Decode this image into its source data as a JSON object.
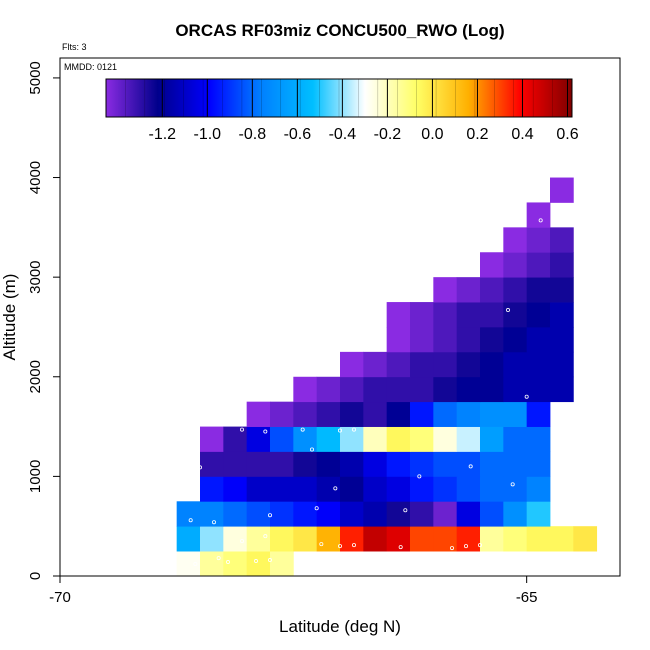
{
  "chart_data": {
    "type": "heatmap",
    "title": "ORCAS RF03miz CONCU500_RWO (Log)",
    "flights_note": "Flts: 3",
    "date_note": "MMDD: 0121",
    "xlabel": "Latitude (deg N)",
    "ylabel": "Altitude (m)",
    "xlim": [
      -70,
      -64
    ],
    "ylim": [
      0,
      5200
    ],
    "x_ticks": [
      -70,
      -65
    ],
    "x_tick_labels": [
      "-70",
      "-65"
    ],
    "y_ticks": [
      0,
      1000,
      2000,
      3000,
      4000,
      5000
    ],
    "y_tick_labels": [
      "0",
      "1000",
      "2000",
      "3000",
      "4000",
      "5000"
    ],
    "bin_width_deg": 0.25,
    "bin_height_m": 250,
    "colorbar": {
      "vmin": -1.45,
      "vmax": 0.62,
      "ticks": [
        -1.2,
        -1.0,
        -0.8,
        -0.6,
        -0.4,
        -0.2,
        0.0,
        0.2,
        0.4,
        0.6
      ],
      "tick_labels": [
        "-1.2",
        "-1.0",
        "-0.8",
        "-0.6",
        "-0.4",
        "-0.2",
        "0.0",
        "0.2",
        "0.4",
        "0.6"
      ],
      "colors": [
        "#8a2be2",
        "#00008b",
        "#0000ff",
        "#0080ff",
        "#00bfff",
        "#ffffff",
        "#ffff66",
        "#ffb000",
        "#ff0000",
        "#7f0000"
      ]
    },
    "rows": [
      {
        "alt": 0,
        "lat0": -68.75,
        "values": [
          -0.28,
          -0.15,
          -0.1,
          -0.05,
          -0.15
        ]
      },
      {
        "alt": 250,
        "lat0": -68.75,
        "values": [
          -0.6,
          -0.4,
          -0.25,
          -0.15,
          -0.05,
          0.0,
          0.15,
          0.35,
          0.5,
          0.45,
          0.3,
          0.3,
          0.35,
          -0.15,
          -0.1,
          -0.05,
          -0.05,
          0.0
        ]
      },
      {
        "alt": 500,
        "lat0": -68.75,
        "values": [
          -0.75,
          -0.75,
          -0.8,
          -0.85,
          -0.9,
          -0.95,
          -1.0,
          -1.1,
          -1.15,
          -1.25,
          -1.3,
          -1.4,
          -1.05,
          -0.85,
          -0.7,
          -0.5
        ]
      },
      {
        "alt": 750,
        "lat0": -68.5,
        "values": [
          -0.95,
          -1.0,
          -1.1,
          -1.1,
          -1.1,
          -1.15,
          -1.2,
          -1.1,
          -1.05,
          -0.95,
          -0.9,
          -0.85,
          -0.8,
          -0.8,
          -0.75
        ]
      },
      {
        "alt": 1000,
        "lat0": -68.5,
        "values": [
          -1.3,
          -1.3,
          -1.3,
          -1.3,
          -1.25,
          -1.2,
          -1.15,
          -1.05,
          -0.95,
          -0.9,
          -0.85,
          -0.85,
          -0.8,
          -0.8,
          -0.8
        ]
      },
      {
        "alt": 1250,
        "lat0": -68.5,
        "values": [
          -1.45,
          -1.3,
          -1.05,
          -0.85,
          -0.7,
          -0.55,
          -0.4,
          -0.2,
          -0.05,
          -0.1,
          -0.25,
          -0.35,
          -0.65,
          -0.8,
          -0.8
        ]
      },
      {
        "alt": 1500,
        "lat0": -68.0,
        "values": [
          -1.45,
          -1.4,
          -1.35,
          -1.3,
          -1.25,
          -1.3,
          -1.2,
          -0.95,
          -0.8,
          -0.75,
          -0.7,
          -0.7,
          -0.95
        ]
      },
      {
        "alt": 1750,
        "lat0": -67.5,
        "values": [
          -1.45,
          -1.4,
          -1.35,
          -1.3,
          -1.3,
          -1.3,
          -1.25,
          -1.2,
          -1.2,
          -1.15,
          -1.15,
          -1.15
        ]
      },
      {
        "alt": 2000,
        "lat0": -67.0,
        "values": [
          -1.45,
          -1.4,
          -1.35,
          -1.3,
          -1.3,
          -1.25,
          -1.2,
          -1.15,
          -1.15,
          -1.15
        ]
      },
      {
        "alt": 2250,
        "lat0": -66.5,
        "values": [
          -1.45,
          -1.4,
          -1.35,
          -1.3,
          -1.25,
          -1.2,
          -1.15,
          -1.15
        ]
      },
      {
        "alt": 2500,
        "lat0": -66.5,
        "values": [
          -1.45,
          -1.4,
          -1.35,
          -1.3,
          -1.3,
          -1.25,
          -1.2,
          -1.15
        ]
      },
      {
        "alt": 2750,
        "lat0": -66.0,
        "values": [
          -1.45,
          -1.4,
          -1.35,
          -1.3,
          -1.25,
          -1.25
        ]
      },
      {
        "alt": 3000,
        "lat0": -65.5,
        "values": [
          -1.45,
          -1.4,
          -1.35,
          -1.3
        ]
      },
      {
        "alt": 3250,
        "lat0": -65.25,
        "values": [
          -1.45,
          -1.4,
          -1.35
        ]
      },
      {
        "alt": 3500,
        "lat0": -65.0,
        "values": [
          -1.45
        ]
      },
      {
        "alt": 3750,
        "lat0": -64.75,
        "values": [
          -1.45
        ]
      }
    ],
    "markers": [
      [
        -68.55,
        120
      ],
      [
        -68.3,
        180
      ],
      [
        -68.2,
        140
      ],
      [
        -67.9,
        150
      ],
      [
        -67.75,
        160
      ],
      [
        -68.05,
        350
      ],
      [
        -67.8,
        400
      ],
      [
        -67.2,
        320
      ],
      [
        -67.0,
        300
      ],
      [
        -66.85,
        310
      ],
      [
        -66.35,
        290
      ],
      [
        -65.8,
        280
      ],
      [
        -65.65,
        300
      ],
      [
        -65.5,
        310
      ],
      [
        -68.6,
        560
      ],
      [
        -68.35,
        540
      ],
      [
        -67.75,
        610
      ],
      [
        -67.25,
        680
      ],
      [
        -66.3,
        660
      ],
      [
        -68.5,
        1090
      ],
      [
        -67.05,
        880
      ],
      [
        -66.15,
        1000
      ],
      [
        -65.6,
        1100
      ],
      [
        -65.15,
        920
      ],
      [
        -68.05,
        1470
      ],
      [
        -67.8,
        1450
      ],
      [
        -67.4,
        1470
      ],
      [
        -67.0,
        1460
      ],
      [
        -67.3,
        1270
      ],
      [
        -66.85,
        1470
      ],
      [
        -65.0,
        1800
      ],
      [
        -65.2,
        2670
      ],
      [
        -64.85,
        3570
      ]
    ]
  }
}
